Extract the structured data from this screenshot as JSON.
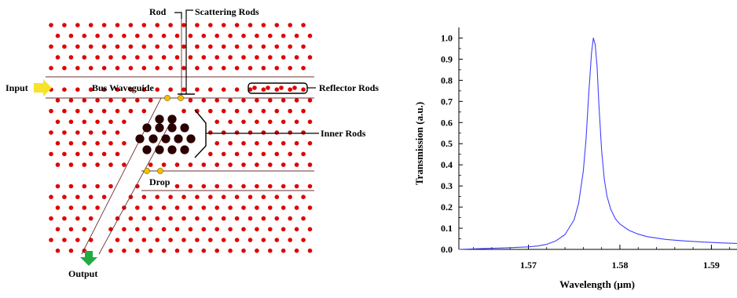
{
  "diagram": {
    "labels": {
      "rod": "Rod",
      "scattering_rods": "Scattering Rods",
      "input": "Input",
      "bus_waveguide": "Bus Waveguide",
      "reflector_rods": "Reflector Rods",
      "inner_rods": "Inner Rods",
      "drop": "Drop",
      "output": "Output"
    },
    "colors": {
      "lattice_rod": "#e00000",
      "inner_rod": "#2a0000",
      "scattering_rod": "#f0c000",
      "input_arrow": "#f6e32a",
      "output_arrow": "#22aa44"
    },
    "icons": {
      "input_arrow": "arrow-right-icon",
      "output_arrow": "arrow-down-icon"
    }
  },
  "chart_data": {
    "type": "line",
    "title": "",
    "xlabel": "Wavelength (μm)",
    "ylabel": "Transmission (a.u.)",
    "xlim": [
      1.5624,
      1.5928
    ],
    "ylim": [
      0,
      1.05
    ],
    "xticks": [
      1.57,
      1.58,
      1.59
    ],
    "yticks": [
      0.0,
      0.1,
      0.2,
      0.3,
      0.4,
      0.5,
      0.6,
      0.7,
      0.8,
      0.9,
      1.0
    ],
    "grid": false,
    "series": [
      {
        "color": "#4040ff",
        "x": [
          1.5624,
          1.565,
          1.568,
          1.57,
          1.571,
          1.572,
          1.573,
          1.574,
          1.575,
          1.5755,
          1.576,
          1.5763,
          1.5766,
          1.5769,
          1.5771,
          1.5773,
          1.5775,
          1.5777,
          1.578,
          1.5783,
          1.5786,
          1.579,
          1.5795,
          1.58,
          1.581,
          1.582,
          1.583,
          1.585,
          1.587,
          1.589,
          1.591,
          1.5928
        ],
        "y": [
          0.0,
          0.004,
          0.008,
          0.012,
          0.016,
          0.024,
          0.04,
          0.07,
          0.14,
          0.22,
          0.37,
          0.52,
          0.74,
          0.93,
          1.0,
          0.97,
          0.87,
          0.69,
          0.47,
          0.33,
          0.25,
          0.19,
          0.145,
          0.12,
          0.09,
          0.072,
          0.06,
          0.047,
          0.04,
          0.035,
          0.031,
          0.028
        ]
      }
    ]
  }
}
